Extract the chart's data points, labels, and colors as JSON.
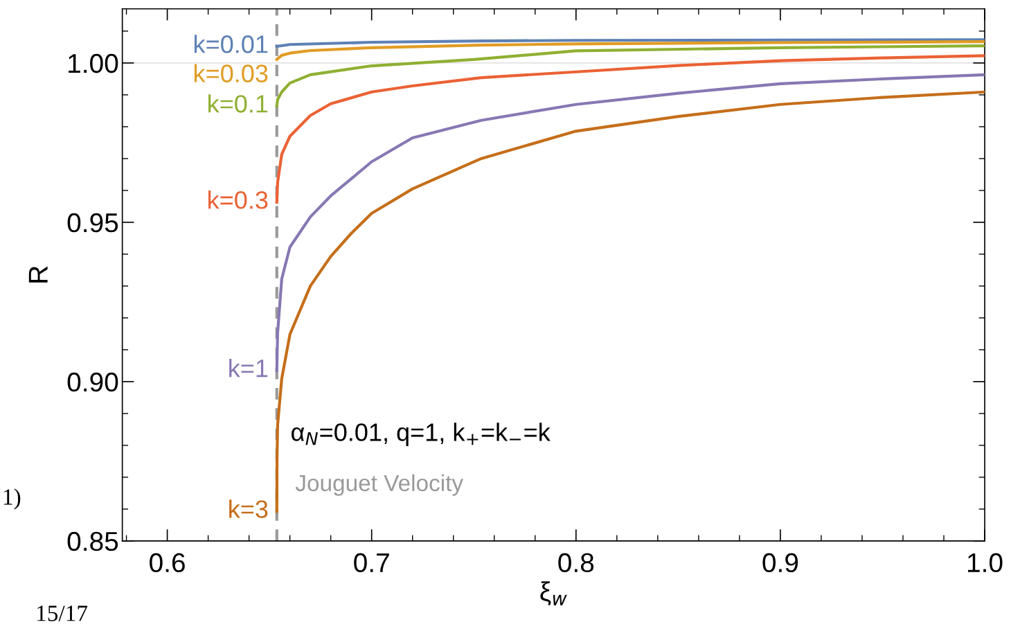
{
  "chart_data": {
    "type": "line",
    "xlabel": "ξ$_{w}$",
    "ylabel": "R",
    "xlim": [
      0.578,
      1.0
    ],
    "ylim": [
      0.85,
      1.017
    ],
    "xticks": [
      0.6,
      0.7,
      0.8,
      0.9,
      {
        "value": 1.0,
        "label": "1.0"
      }
    ],
    "yticks": [
      {
        "value": 0.85,
        "label": "0.85"
      },
      {
        "value": 0.9,
        "label": "0.90"
      },
      {
        "value": 0.95,
        "label": "0.95"
      },
      {
        "value": 1.0,
        "label": "1.00"
      }
    ],
    "grid": false,
    "marker": "none",
    "line_style": "solid",
    "series": [
      {
        "name": "k=0.01",
        "color": "#5e81b5",
        "x": [
          0.6536,
          0.66,
          0.7,
          0.7536,
          0.8,
          0.9,
          1.0
        ],
        "values": [
          1.0052,
          1.0058,
          1.0065,
          1.0069,
          1.0071,
          1.0072,
          1.0073
        ]
      },
      {
        "name": "k=0.03",
        "color": "#e19c24",
        "x": [
          0.6536,
          0.656,
          0.66,
          0.67,
          0.7,
          0.7536,
          0.8,
          0.9,
          1.0
        ],
        "values": [
          1.0011,
          1.0024,
          1.0031,
          1.0039,
          1.0048,
          1.0056,
          1.006,
          1.0064,
          1.0067
        ]
      },
      {
        "name": "k=0.1",
        "color": "#8fb032",
        "x": [
          0.6536,
          0.654,
          0.656,
          0.66,
          0.67,
          0.7,
          0.75,
          0.8,
          0.9,
          1.0
        ],
        "values": [
          0.9865,
          0.9885,
          0.9909,
          0.9937,
          0.9963,
          0.9991,
          1.0011,
          1.0038,
          1.0048,
          1.0054
        ]
      },
      {
        "name": "k=0.3",
        "color": "#eb6235",
        "x": [
          0.6536,
          0.654,
          0.656,
          0.66,
          0.67,
          0.68,
          0.7,
          0.72,
          0.7536,
          0.8,
          0.85,
          0.9,
          0.95,
          1.0
        ],
        "values": [
          0.9563,
          0.9626,
          0.9713,
          0.977,
          0.9835,
          0.9872,
          0.9909,
          0.9928,
          0.9954,
          0.9972,
          0.9992,
          1.0007,
          1.0016,
          1.0023
        ]
      },
      {
        "name": "k=1",
        "color": "#8778b3",
        "x": [
          0.6536,
          0.654,
          0.656,
          0.66,
          0.67,
          0.68,
          0.7,
          0.72,
          0.7536,
          0.8,
          0.85,
          0.9,
          0.95,
          1.0
        ],
        "values": [
          0.9035,
          0.9154,
          0.9322,
          0.9422,
          0.9517,
          0.9583,
          0.969,
          0.9765,
          0.982,
          0.987,
          0.9905,
          0.9935,
          0.995,
          0.9963
        ]
      },
      {
        "name": "k=3",
        "color": "#c56e1a",
        "x": [
          0.6536,
          0.6537,
          0.654,
          0.656,
          0.66,
          0.67,
          0.68,
          0.69,
          0.7,
          0.72,
          0.7536,
          0.8,
          0.85,
          0.9,
          0.95,
          1.0
        ],
        "values": [
          0.8593,
          0.8756,
          0.8865,
          0.9009,
          0.9148,
          0.93,
          0.9393,
          0.9465,
          0.9528,
          0.9605,
          0.97,
          0.9786,
          0.9832,
          0.987,
          0.9892,
          0.9909
        ]
      }
    ],
    "ref_lines": [
      {
        "axis": "y",
        "value": 1.0,
        "color": "#d9d9d9",
        "line_style": "solid"
      },
      {
        "axis": "x",
        "value": 0.6536,
        "label": "Jouguet Velocity",
        "color": "#999999",
        "line_style": "dashed"
      }
    ],
    "annotations": [
      "α$_{N}$=0.01, q=1, k$_{+}$=k$_{−}$=k",
      "1)",
      "15/17"
    ]
  }
}
